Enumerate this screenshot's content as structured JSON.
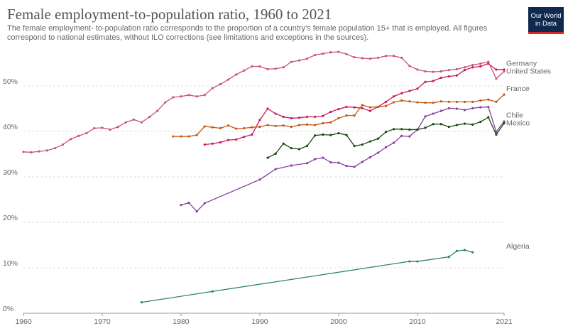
{
  "title": "Female employment-to-population ratio, 1960 to 2021",
  "subtitle": "The female employment- to-population ratio corresponds to the proportion of a country's female population 15+ that is employed. All figures correspond to national estimates, without ILO corrections (see limitations and exceptions in the sources).",
  "logo": [
    "Our World",
    "in Data"
  ],
  "chart_data": {
    "type": "line",
    "xlim": [
      1960,
      2021
    ],
    "xticks": [
      1960,
      1970,
      1980,
      1990,
      2000,
      2010,
      2021
    ],
    "ylim": [
      0,
      57.5
    ],
    "yticks": [
      {
        "value": 0,
        "label": "0%"
      },
      {
        "value": 10,
        "label": "10%"
      },
      {
        "value": 20,
        "label": "20%"
      },
      {
        "value": 30,
        "label": "30%"
      },
      {
        "value": 40,
        "label": "40%"
      },
      {
        "value": 50,
        "label": "50%"
      }
    ],
    "grid": true,
    "series": [
      {
        "name": "Germany",
        "color": "#c8195c",
        "x": [
          1983,
          1984,
          1985,
          1986,
          1987,
          1988,
          1989,
          1990,
          1991,
          1992,
          1993,
          1994,
          1995,
          1996,
          1997,
          1998,
          1999,
          2000,
          2001,
          2002,
          2003,
          2004,
          2005,
          2006,
          2007,
          2008,
          2009,
          2010,
          2011,
          2012,
          2013,
          2014,
          2015,
          2016,
          2017,
          2018,
          2019,
          2020,
          2021
        ],
        "values": [
          37.1,
          37.3,
          37.6,
          38.1,
          38.2,
          38.8,
          39.3,
          42.5,
          45.0,
          43.9,
          43.2,
          42.9,
          43.0,
          43.2,
          43.2,
          43.4,
          44.3,
          44.9,
          45.4,
          45.3,
          45.1,
          44.5,
          45.4,
          46.5,
          47.7,
          48.4,
          48.9,
          49.4,
          50.9,
          51.1,
          51.8,
          52.1,
          52.3,
          53.5,
          54.1,
          54.3,
          54.9,
          53.6,
          53.6
        ]
      },
      {
        "name": "United States",
        "color": "#c9537a",
        "x": [
          1960,
          1961,
          1962,
          1963,
          1964,
          1965,
          1966,
          1967,
          1968,
          1969,
          1970,
          1971,
          1972,
          1973,
          1974,
          1975,
          1976,
          1977,
          1978,
          1979,
          1980,
          1981,
          1982,
          1983,
          1984,
          1985,
          1986,
          1987,
          1988,
          1989,
          1990,
          1991,
          1992,
          1993,
          1994,
          1995,
          1996,
          1997,
          1998,
          1999,
          2000,
          2001,
          2002,
          2003,
          2004,
          2005,
          2006,
          2007,
          2008,
          2009,
          2010,
          2011,
          2012,
          2013,
          2014,
          2015,
          2016,
          2017,
          2018,
          2019,
          2020,
          2021
        ],
        "values": [
          35.5,
          35.4,
          35.6,
          35.8,
          36.3,
          37.1,
          38.3,
          39.0,
          39.6,
          40.7,
          40.8,
          40.4,
          41.0,
          42.0,
          42.6,
          42.0,
          43.2,
          44.5,
          46.4,
          47.5,
          47.7,
          48.0,
          47.7,
          48.0,
          49.5,
          50.4,
          51.4,
          52.5,
          53.4,
          54.3,
          54.3,
          53.7,
          53.8,
          54.1,
          55.3,
          55.6,
          56.0,
          56.8,
          57.1,
          57.4,
          57.5,
          57.0,
          56.3,
          56.1,
          56.0,
          56.2,
          56.6,
          56.6,
          56.2,
          54.4,
          53.6,
          53.2,
          53.1,
          53.2,
          53.5,
          53.7,
          54.1,
          54.6,
          54.9,
          55.3,
          51.6,
          53.2
        ]
      },
      {
        "name": "France",
        "color": "#c05917",
        "x": [
          1979,
          1980,
          1981,
          1982,
          1983,
          1984,
          1985,
          1986,
          1987,
          1988,
          1989,
          1990,
          1991,
          1992,
          1993,
          1994,
          1995,
          1996,
          1997,
          1998,
          1999,
          2000,
          2001,
          2002,
          2003,
          2004,
          2005,
          2006,
          2007,
          2008,
          2009,
          2010,
          2011,
          2012,
          2013,
          2014,
          2015,
          2016,
          2017,
          2018,
          2019,
          2020,
          2021
        ],
        "values": [
          38.9,
          38.9,
          38.9,
          39.2,
          41.1,
          40.9,
          40.7,
          41.3,
          40.6,
          40.7,
          40.9,
          41.0,
          41.4,
          41.2,
          41.3,
          41.0,
          41.4,
          41.5,
          41.4,
          41.8,
          42.0,
          42.9,
          43.5,
          43.5,
          45.8,
          45.3,
          45.4,
          45.6,
          46.4,
          46.8,
          46.6,
          46.4,
          46.3,
          46.3,
          46.6,
          46.5,
          46.5,
          46.5,
          46.5,
          46.8,
          47.0,
          46.5,
          48.1
        ]
      },
      {
        "name": "Chile",
        "color": "#883ea1",
        "x": [
          1980,
          1981,
          1982,
          1983,
          1990,
          1992,
          1994,
          1996,
          1997,
          1998,
          1999,
          2000,
          2001,
          2002,
          2003,
          2004,
          2005,
          2006,
          2007,
          2008,
          2009,
          2010,
          2011,
          2012,
          2013,
          2014,
          2015,
          2016,
          2017,
          2018,
          2019,
          2020,
          2021
        ],
        "values": [
          23.8,
          24.3,
          22.4,
          24.2,
          29.4,
          31.7,
          32.5,
          33.0,
          33.9,
          34.2,
          33.2,
          33.1,
          32.4,
          32.2,
          33.3,
          34.3,
          35.3,
          36.5,
          37.5,
          39.0,
          38.9,
          40.4,
          43.3,
          43.9,
          44.5,
          45.1,
          45.0,
          44.7,
          45.1,
          45.3,
          45.4,
          39.9,
          42.2
        ]
      },
      {
        "name": "Mexico",
        "color": "#18470f",
        "x": [
          1991,
          1992,
          1993,
          1994,
          1995,
          1996,
          1997,
          1998,
          1999,
          2000,
          2001,
          2002,
          2003,
          2004,
          2005,
          2006,
          2007,
          2008,
          2009,
          2010,
          2011,
          2012,
          2013,
          2014,
          2015,
          2016,
          2017,
          2018,
          2019,
          2020,
          2021
        ],
        "values": [
          34.2,
          35.1,
          37.3,
          36.3,
          36.1,
          36.8,
          39.1,
          39.3,
          39.2,
          39.6,
          39.2,
          36.8,
          37.1,
          37.8,
          38.4,
          39.9,
          40.5,
          40.5,
          40.4,
          40.4,
          40.8,
          41.6,
          41.6,
          41.0,
          41.4,
          41.7,
          41.5,
          42.1,
          43.1,
          39.3,
          41.8
        ]
      },
      {
        "name": "Algeria",
        "color": "#2c8465",
        "x": [
          1975,
          1984,
          2009,
          2010,
          2014,
          2015,
          2016,
          2017
        ],
        "values": [
          2.4,
          4.8,
          11.4,
          11.4,
          12.4,
          13.7,
          13.9,
          13.4
        ]
      }
    ]
  }
}
